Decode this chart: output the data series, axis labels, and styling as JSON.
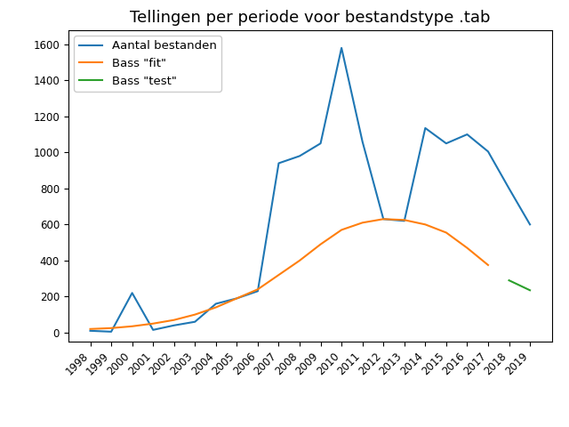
{
  "title": "Tellingen per periode voor bestandstype .tab",
  "years_blue": [
    1998,
    1999,
    2000,
    2001,
    2002,
    2003,
    2004,
    2005,
    2006,
    2007,
    2008,
    2009,
    2010,
    2011,
    2012,
    2013,
    2014,
    2015,
    2016,
    2017,
    2018,
    2019
  ],
  "values_blue": [
    10,
    5,
    220,
    15,
    40,
    60,
    160,
    190,
    230,
    940,
    980,
    1050,
    1580,
    1060,
    630,
    620,
    1135,
    1050,
    1100,
    1005,
    800,
    600
  ],
  "years_orange": [
    1998,
    1999,
    2000,
    2001,
    2002,
    2003,
    2004,
    2005,
    2006,
    2007,
    2008,
    2009,
    2010,
    2011,
    2012,
    2013,
    2014,
    2015,
    2016,
    2017
  ],
  "values_orange": [
    20,
    25,
    35,
    50,
    70,
    100,
    140,
    190,
    240,
    320,
    400,
    490,
    570,
    610,
    630,
    625,
    600,
    555,
    470,
    375
  ],
  "years_green": [
    2018,
    2019
  ],
  "values_green": [
    290,
    235
  ],
  "legend_labels": [
    "Aantal bestanden",
    "Bass \"fit\"",
    "Bass \"test\""
  ],
  "color_blue": "#1f77b4",
  "color_orange": "#ff7f0e",
  "color_green": "#2ca02c",
  "ylim": [
    -50,
    1680
  ],
  "xticks": [
    1998,
    1999,
    2000,
    2001,
    2002,
    2003,
    2004,
    2005,
    2006,
    2007,
    2008,
    2009,
    2010,
    2011,
    2012,
    2013,
    2014,
    2015,
    2016,
    2017,
    2018,
    2019
  ],
  "yticks": [
    0,
    200,
    400,
    600,
    800,
    1000,
    1200,
    1400,
    1600
  ],
  "title_fontsize": 13,
  "tick_fontsize": 8.5,
  "legend_fontsize": 9.5
}
